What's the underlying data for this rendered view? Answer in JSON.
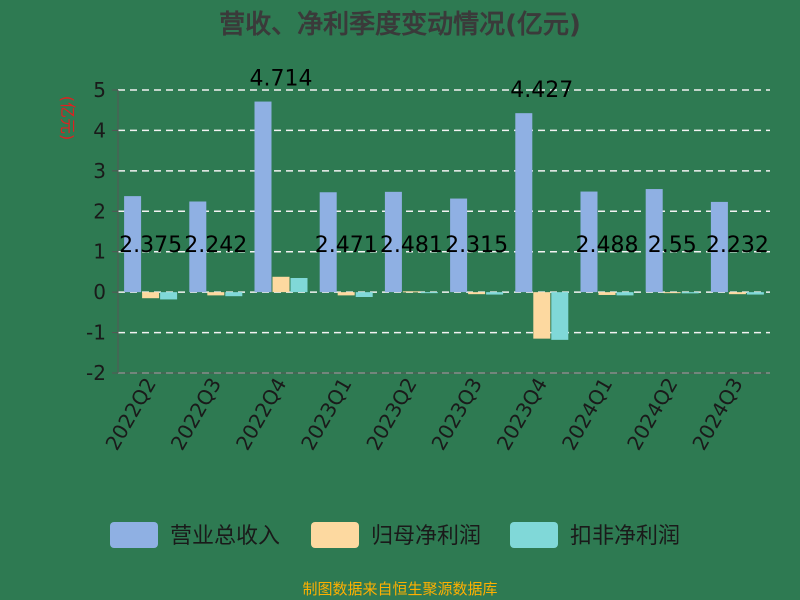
{
  "chart_data": {
    "type": "bar",
    "title": "营收、净利季度变动情况(亿元)",
    "ylabel": "(亿元)",
    "xlabel": "",
    "ylim": [
      -2,
      5
    ],
    "yticks": [
      5,
      4,
      3,
      2,
      1,
      0,
      -1,
      -2
    ],
    "grid": true,
    "legend_position": "bottom",
    "categories": [
      "2022Q2",
      "2022Q3",
      "2022Q4",
      "2023Q1",
      "2023Q2",
      "2023Q3",
      "2023Q4",
      "2024Q1",
      "2024Q2",
      "2024Q3"
    ],
    "series": [
      {
        "name": "营业总收入",
        "color": "#8fb0e3",
        "values": [
          2.375,
          2.242,
          4.714,
          2.471,
          2.481,
          2.315,
          4.427,
          2.488,
          2.55,
          2.232
        ]
      },
      {
        "name": "归母净利润",
        "color": "#fdd9a0",
        "values": [
          -0.15,
          -0.08,
          0.38,
          -0.08,
          0.02,
          -0.05,
          -1.15,
          -0.07,
          -0.02,
          -0.05
        ]
      },
      {
        "name": "扣非净利润",
        "color": "#80d8d8",
        "values": [
          -0.18,
          -0.1,
          0.35,
          -0.12,
          -0.01,
          -0.06,
          -1.18,
          -0.08,
          -0.03,
          -0.06
        ]
      }
    ],
    "data_labels": [
      "2.375",
      "2.242",
      "4.714",
      "2.471",
      "2.481",
      "2.315",
      "4.427",
      "2.488",
      "2.55",
      "2.232"
    ]
  },
  "source_text": "制图数据来自恒生聚源数据库"
}
